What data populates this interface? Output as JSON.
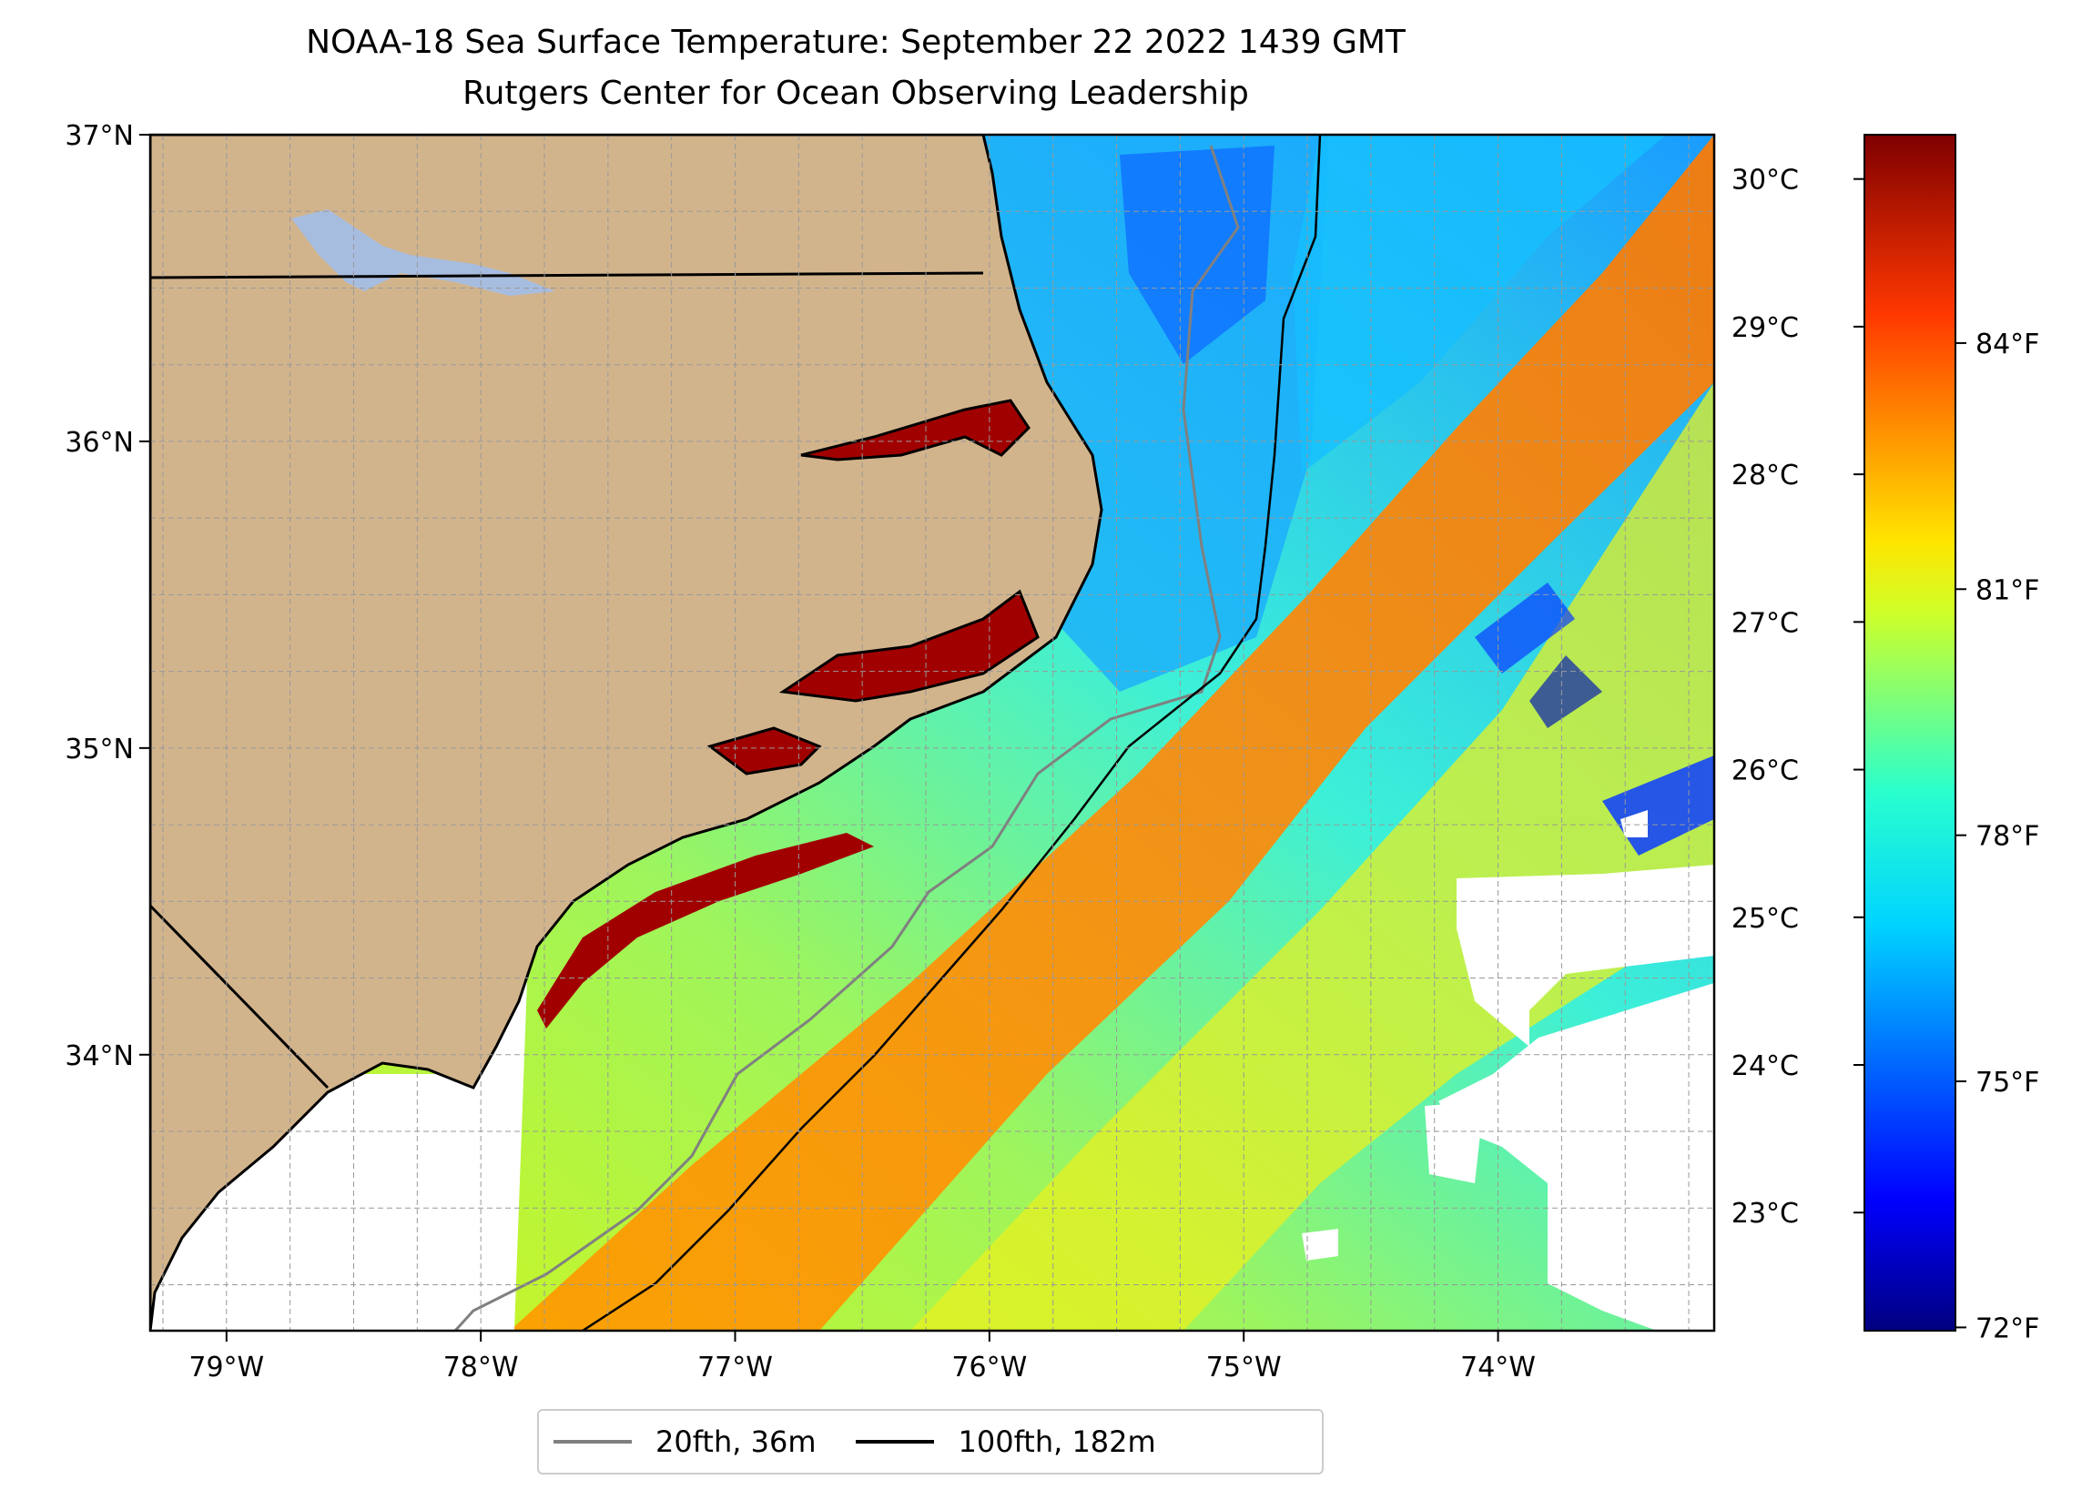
{
  "map": {
    "title": "NOAA-18 Sea Surface Temperature: September 22 2022 1439 GMT",
    "subtitle": "Rutgers Center for Ocean Observing Leadership",
    "extent": {
      "lon": [
        -79.3,
        -73.15
      ],
      "lat": [
        33.1,
        37.0
      ]
    },
    "lon_ticks": [
      {
        "value": -79,
        "label": "79°W"
      },
      {
        "value": -78,
        "label": "78°W"
      },
      {
        "value": -77,
        "label": "77°W"
      },
      {
        "value": -76,
        "label": "76°W"
      },
      {
        "value": -75,
        "label": "75°W"
      },
      {
        "value": -74,
        "label": "74°W"
      }
    ],
    "lat_ticks": [
      {
        "value": 37,
        "label": "37°N"
      },
      {
        "value": 36,
        "label": "36°N"
      },
      {
        "value": 35,
        "label": "35°N"
      },
      {
        "value": 34,
        "label": "34°N"
      }
    ],
    "gridlines": "dashed",
    "colors": {
      "land": "#d2b48c",
      "lake": "#a7bde0",
      "coastline": "#000000",
      "isobath_20": "#808080",
      "isobath_100": "#000000",
      "no_data": "#ffffff"
    }
  },
  "colorbar": {
    "colormap": "jet",
    "range_c": [
      22.2,
      30.3
    ],
    "celsius_ticks": [
      {
        "value": 30,
        "label": "30°C"
      },
      {
        "value": 29,
        "label": "29°C"
      },
      {
        "value": 28,
        "label": "28°C"
      },
      {
        "value": 27,
        "label": "27°C"
      },
      {
        "value": 26,
        "label": "26°C"
      },
      {
        "value": 25,
        "label": "25°C"
      },
      {
        "value": 24,
        "label": "24°C"
      },
      {
        "value": 23,
        "label": "23°C"
      }
    ],
    "fahrenheit_ticks": [
      {
        "value": 84,
        "label": "84°F"
      },
      {
        "value": 81,
        "label": "81°F"
      },
      {
        "value": 78,
        "label": "78°F"
      },
      {
        "value": 75,
        "label": "75°F"
      },
      {
        "value": 72,
        "label": "72°F"
      }
    ]
  },
  "legend": {
    "items": [
      {
        "label": "20fth, 36m",
        "color": "#808080"
      },
      {
        "label": "100fth, 182m",
        "color": "#000000"
      }
    ]
  }
}
